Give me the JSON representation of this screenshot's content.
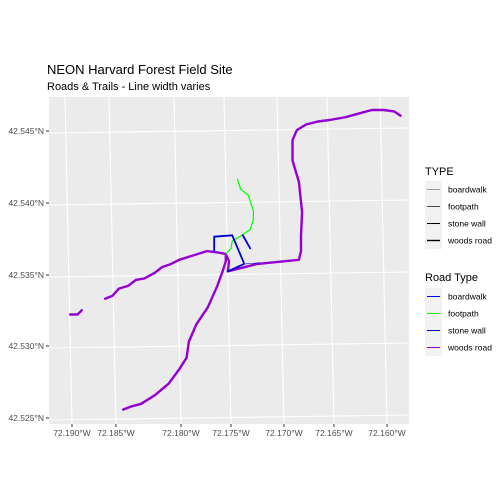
{
  "chart_data": {
    "type": "line",
    "title": "NEON Harvard Forest Field Site",
    "subtitle": "Roads & Trails - Line width varies",
    "xlabel": "",
    "ylabel": "",
    "xlim": [
      -72.1925,
      -72.1585
    ],
    "ylim": [
      42.5245,
      42.5472
    ],
    "x_ticks": [
      -72.19,
      -72.185,
      -72.18,
      -72.175,
      -72.17,
      -72.165,
      -72.16
    ],
    "x_tick_labels": [
      "72.190°W",
      "72.185°W",
      "72.180°W",
      "72.175°W",
      "72.170°W",
      "72.165°W",
      "72.160°W"
    ],
    "y_ticks": [
      42.525,
      42.53,
      42.535,
      42.54,
      42.545
    ],
    "y_tick_labels": [
      "42.525°N",
      "42.530°N",
      "42.535°N",
      "42.540°N",
      "42.545°N"
    ],
    "grid": true,
    "background": "#ebebeb",
    "legend_position": "right",
    "legends": [
      {
        "title": "TYPE",
        "key": "linewidth",
        "entries": [
          "boardwalk",
          "footpath",
          "stone wall",
          "woods road"
        ],
        "widths": [
          1,
          2,
          3,
          4
        ]
      },
      {
        "title": "Road Type",
        "key": "color",
        "entries": [
          "boardwalk",
          "footpath",
          "stone wall",
          "woods road"
        ],
        "colors": [
          "#0000ff",
          "#00ff00",
          "#0000cd",
          "#9400d3"
        ]
      }
    ],
    "series": [
      {
        "name": "woods road",
        "color": "#9400d3",
        "paths": [
          [
            [
              -72.1905,
              42.5321
            ],
            [
              -72.1898,
              42.5321
            ],
            [
              -72.1894,
              42.5324
            ]
          ],
          [
            [
              -72.1855,
              42.5255
            ],
            [
              -72.1848,
              42.5257
            ],
            [
              -72.1838,
              42.5259
            ],
            [
              -72.1825,
              42.5265
            ],
            [
              -72.1812,
              42.5273
            ],
            [
              -72.1802,
              42.5283
            ],
            [
              -72.1795,
              42.5291
            ],
            [
              -72.1793,
              42.5302
            ],
            [
              -72.1786,
              42.5314
            ],
            [
              -72.1775,
              42.5326
            ],
            [
              -72.1766,
              42.5341
            ],
            [
              -72.1761,
              42.5351
            ],
            [
              -72.1758,
              42.5358
            ],
            [
              -72.1758,
              42.5363
            ]
          ],
          [
            [
              -72.1872,
              42.5332
            ],
            [
              -72.1865,
              42.5334
            ],
            [
              -72.1859,
              42.5339
            ],
            [
              -72.185,
              42.5341
            ],
            [
              -72.1843,
              42.5345
            ],
            [
              -72.1835,
              42.5346
            ],
            [
              -72.1825,
              42.535
            ],
            [
              -72.1818,
              42.5354
            ],
            [
              -72.181,
              42.5356
            ],
            [
              -72.1802,
              42.5359
            ],
            [
              -72.1789,
              42.5362
            ],
            [
              -72.1776,
              42.5365
            ],
            [
              -72.1765,
              42.5364
            ],
            [
              -72.1758,
              42.5363
            ]
          ],
          [
            [
              -72.1758,
              42.5363
            ],
            [
              -72.1755,
              42.5358
            ],
            [
              -72.1756,
              42.5351
            ]
          ],
          [
            [
              -72.1756,
              42.5351
            ],
            [
              -72.1729,
              42.5356
            ],
            [
              -72.1702,
              42.5358
            ],
            [
              -72.1689,
              42.5359
            ],
            [
              -72.1687,
              42.5365
            ],
            [
              -72.1687,
              42.5376
            ],
            [
              -72.1686,
              42.5392
            ],
            [
              -72.1689,
              42.5413
            ],
            [
              -72.1695,
              42.5428
            ],
            [
              -72.1695,
              42.5442
            ],
            [
              -72.1691,
              42.5449
            ],
            [
              -72.1682,
              42.5453
            ],
            [
              -72.1671,
              42.5455
            ],
            [
              -72.166,
              42.5456
            ],
            [
              -72.1645,
              42.5458
            ],
            [
              -72.163,
              42.5461
            ],
            [
              -72.162,
              42.5463
            ],
            [
              -72.1609,
              42.5463
            ],
            [
              -72.1599,
              42.5462
            ],
            [
              -72.1593,
              42.5459
            ]
          ]
        ]
      },
      {
        "name": "footpath",
        "color": "#00ff00",
        "paths": [
          [
            [
              -72.1747,
              42.5415
            ],
            [
              -72.1744,
              42.5408
            ],
            [
              -72.1737,
              42.5404
            ],
            [
              -72.1732,
              42.5393
            ],
            [
              -72.1732,
              42.5387
            ],
            [
              -72.1735,
              42.538
            ],
            [
              -72.1745,
              42.5375
            ],
            [
              -72.1752,
              42.5372
            ],
            [
              -72.1753,
              42.5367
            ],
            [
              -72.1758,
              42.5363
            ]
          ]
        ]
      },
      {
        "name": "boardwalk",
        "color": "#0000ff",
        "paths": [
          [
            [
              -72.1741,
              42.5356
            ],
            [
              -72.1726,
              42.5357
            ]
          ]
        ]
      },
      {
        "name": "stone wall",
        "color": "#0000cd",
        "paths": [
          [
            [
              -72.1756,
              42.5351
            ],
            [
              -72.1741,
              42.5356
            ]
          ],
          [
            [
              -72.1769,
              42.5375
            ],
            [
              -72.1752,
              42.5376
            ],
            [
              -72.1741,
              42.5357
            ]
          ],
          [
            [
              -72.1769,
              42.5375
            ],
            [
              -72.1769,
              42.5365
            ]
          ],
          [
            [
              -72.1742,
              42.5376
            ],
            [
              -72.1735,
              42.5367
            ]
          ]
        ]
      }
    ]
  }
}
